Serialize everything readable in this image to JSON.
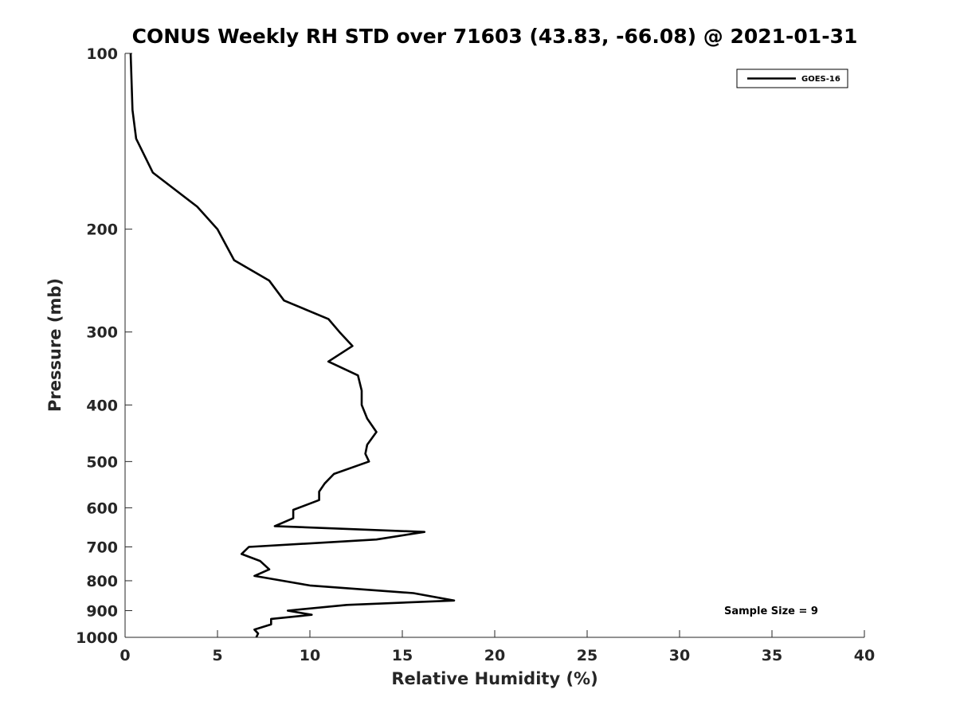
{
  "chart_data": {
    "type": "line",
    "title": "CONUS Weekly RH STD over 71603 (43.83, -66.08) @ 2021-01-31",
    "xlabel": "Relative Humidity (%)",
    "ylabel": "Pressure (mb)",
    "xlim": [
      0,
      40
    ],
    "ylim": [
      100,
      1000
    ],
    "y_scale": "log",
    "y_reversed": true,
    "x_ticks": [
      0,
      5,
      10,
      15,
      20,
      25,
      30,
      35,
      40
    ],
    "y_ticks": [
      100,
      200,
      300,
      400,
      500,
      600,
      700,
      800,
      900,
      1000
    ],
    "grid": false,
    "legend_position": "top-right",
    "annotation": "Sample Size = 9",
    "series": [
      {
        "name": "GOES-16",
        "color": "#000000",
        "points": [
          [
            0.3,
            100
          ],
          [
            0.4,
            125
          ],
          [
            0.6,
            140
          ],
          [
            1.5,
            160
          ],
          [
            3.9,
            183
          ],
          [
            5.0,
            200
          ],
          [
            5.9,
            226
          ],
          [
            7.8,
            245
          ],
          [
            8.6,
            265
          ],
          [
            11.0,
            285
          ],
          [
            11.6,
            300
          ],
          [
            12.3,
            317
          ],
          [
            11.0,
            337
          ],
          [
            12.6,
            356
          ],
          [
            12.8,
            378
          ],
          [
            12.8,
            400
          ],
          [
            13.1,
            422
          ],
          [
            13.6,
            445
          ],
          [
            13.1,
            468
          ],
          [
            13.0,
            485
          ],
          [
            13.2,
            500
          ],
          [
            11.3,
            525
          ],
          [
            10.8,
            545
          ],
          [
            10.5,
            563
          ],
          [
            10.5,
            582
          ],
          [
            9.1,
            605
          ],
          [
            9.1,
            625
          ],
          [
            8.1,
            645
          ],
          [
            16.2,
            660
          ],
          [
            13.6,
            680
          ],
          [
            6.7,
            700
          ],
          [
            6.3,
            720
          ],
          [
            7.3,
            740
          ],
          [
            7.8,
            765
          ],
          [
            7.0,
            785
          ],
          [
            10.0,
            815
          ],
          [
            15.6,
            840
          ],
          [
            17.8,
            865
          ],
          [
            12.0,
            880
          ],
          [
            8.8,
            900
          ],
          [
            10.1,
            915
          ],
          [
            7.9,
            930
          ],
          [
            7.9,
            950
          ],
          [
            7.0,
            970
          ],
          [
            7.2,
            985
          ],
          [
            7.1,
            1000
          ]
        ]
      }
    ]
  }
}
